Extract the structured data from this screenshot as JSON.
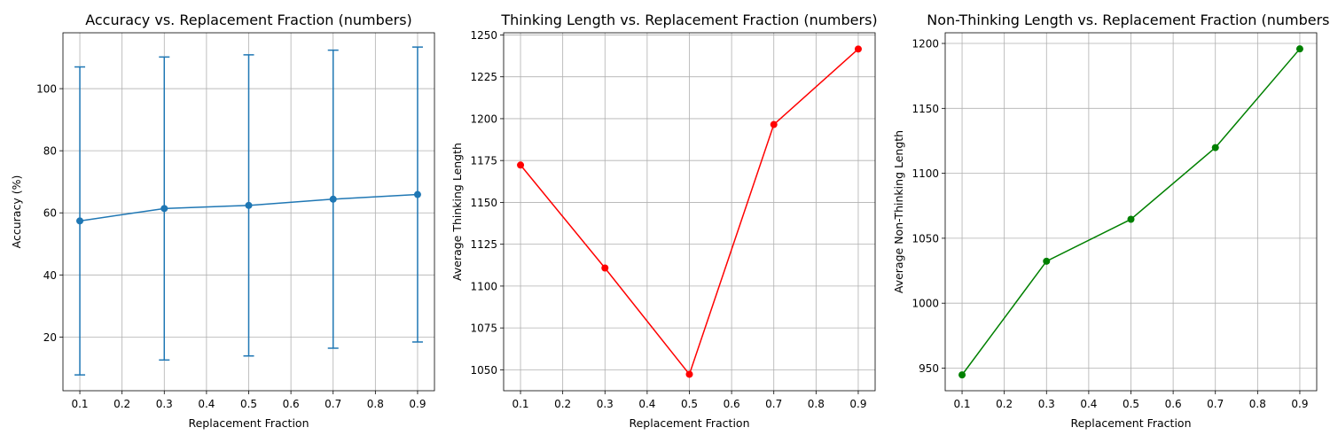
{
  "chart_data": [
    {
      "type": "line",
      "title": "Accuracy vs. Replacement Fraction (numbers)",
      "xlabel": "Replacement Fraction",
      "ylabel": "Accuracy (%)",
      "xlim": [
        0.06,
        0.94
      ],
      "ylim": [
        2.7,
        118.0
      ],
      "xticks": [
        "0.1",
        "0.2",
        "0.3",
        "0.4",
        "0.5",
        "0.6",
        "0.7",
        "0.8",
        "0.9"
      ],
      "yticks": [
        "20",
        "40",
        "60",
        "80",
        "100"
      ],
      "grid": true,
      "color": "#1f77b4",
      "series": [
        {
          "x": [
            0.1,
            0.3,
            0.5,
            0.7,
            0.9
          ],
          "y": [
            57.4,
            61.4,
            62.4,
            64.4,
            65.9
          ],
          "error": [
            49.6,
            48.8,
            48.5,
            48.0,
            47.5
          ]
        }
      ]
    },
    {
      "type": "line",
      "title": "Thinking Length vs. Replacement Fraction (numbers)",
      "xlabel": "Replacement Fraction",
      "ylabel": "Average Thinking Length",
      "xlim": [
        0.06,
        0.94
      ],
      "ylim": [
        1037.5,
        1251.3
      ],
      "xticks": [
        "0.1",
        "0.2",
        "0.3",
        "0.4",
        "0.5",
        "0.6",
        "0.7",
        "0.8",
        "0.9"
      ],
      "yticks": [
        "1050",
        "1075",
        "1100",
        "1125",
        "1150",
        "1175",
        "1200",
        "1225",
        "1250"
      ],
      "grid": true,
      "color": "#ff0000",
      "series": [
        {
          "x": [
            0.1,
            0.3,
            0.5,
            0.7,
            0.9
          ],
          "y": [
            1172.3,
            1110.8,
            1047.3,
            1196.5,
            1241.6
          ]
        }
      ]
    },
    {
      "type": "line",
      "title": "Non-Thinking Length vs. Replacement Fraction (numbers)",
      "xlabel": "Replacement Fraction",
      "ylabel": "Average Non-Thinking Length",
      "xlim": [
        0.06,
        0.94
      ],
      "ylim": [
        932.6,
        1208.2
      ],
      "xticks": [
        "0.1",
        "0.2",
        "0.3",
        "0.4",
        "0.5",
        "0.6",
        "0.7",
        "0.8",
        "0.9"
      ],
      "yticks": [
        "950",
        "1000",
        "1050",
        "1100",
        "1150",
        "1200"
      ],
      "grid": true,
      "color": "#008000",
      "series": [
        {
          "x": [
            0.1,
            0.3,
            0.5,
            0.7,
            0.9
          ],
          "y": [
            944.8,
            1032.3,
            1064.6,
            1119.8,
            1195.8
          ]
        }
      ]
    }
  ]
}
